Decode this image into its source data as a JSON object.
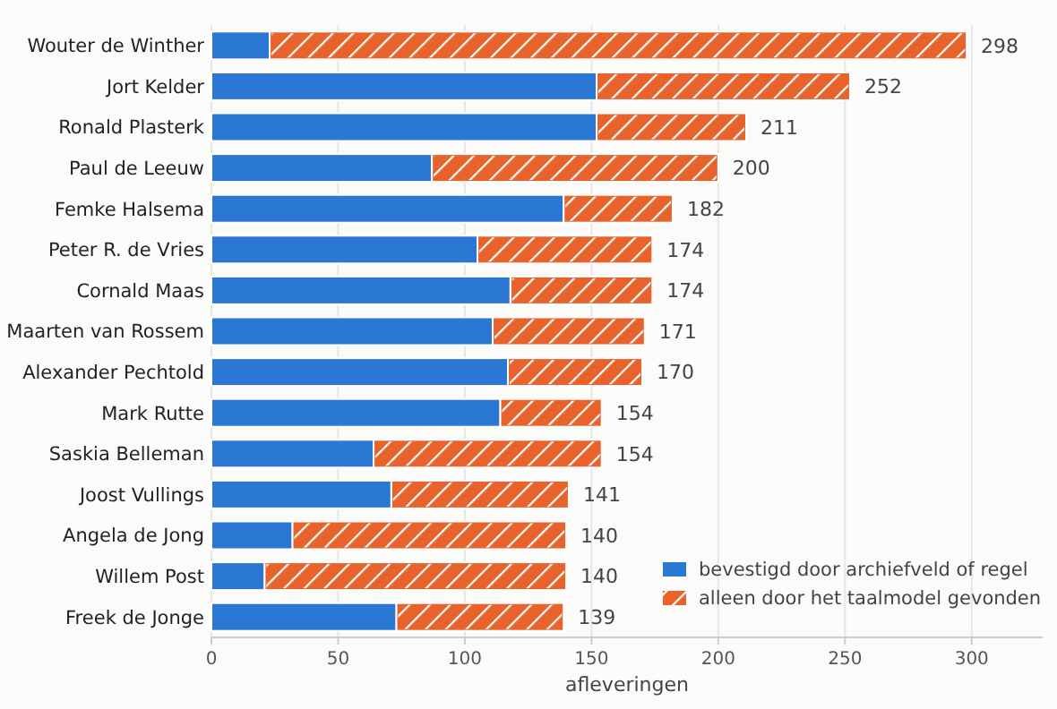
{
  "chart_data": {
    "type": "bar",
    "orientation": "horizontal",
    "stacked": true,
    "xlabel": "afleveringen",
    "categories": [
      "Wouter de Winther",
      "Jort Kelder",
      "Ronald Plasterk",
      "Paul de Leeuw",
      "Femke Halsema",
      "Peter R. de Vries",
      "Cornald Maas",
      "Maarten van Rossem",
      "Alexander Pechtold",
      "Mark Rutte",
      "Saskia Belleman",
      "Joost Vullings",
      "Angela de Jong",
      "Willem Post",
      "Freek de Jonge"
    ],
    "series": [
      {
        "name": "bevestigd door archiefveld of regel",
        "color": "#2b78d4",
        "values": [
          23,
          152,
          152,
          87,
          139,
          105,
          118,
          111,
          117,
          114,
          64,
          71,
          32,
          21,
          73
        ]
      },
      {
        "name": "alleen door het taalmodel gevonden",
        "color": "#e8622c",
        "values": [
          275,
          100,
          59,
          113,
          43,
          69,
          56,
          60,
          53,
          40,
          90,
          70,
          108,
          119,
          66
        ]
      }
    ],
    "totals": [
      "298",
      "252",
      "211",
      "200",
      "182",
      "174",
      "174",
      "171",
      "170",
      "154",
      "154",
      "141",
      "140",
      "140",
      "139"
    ],
    "xlim": [
      0,
      328
    ],
    "xticks": [
      0,
      50,
      100,
      150,
      200,
      250,
      300
    ],
    "grid": "x",
    "legend": "bottom right"
  }
}
